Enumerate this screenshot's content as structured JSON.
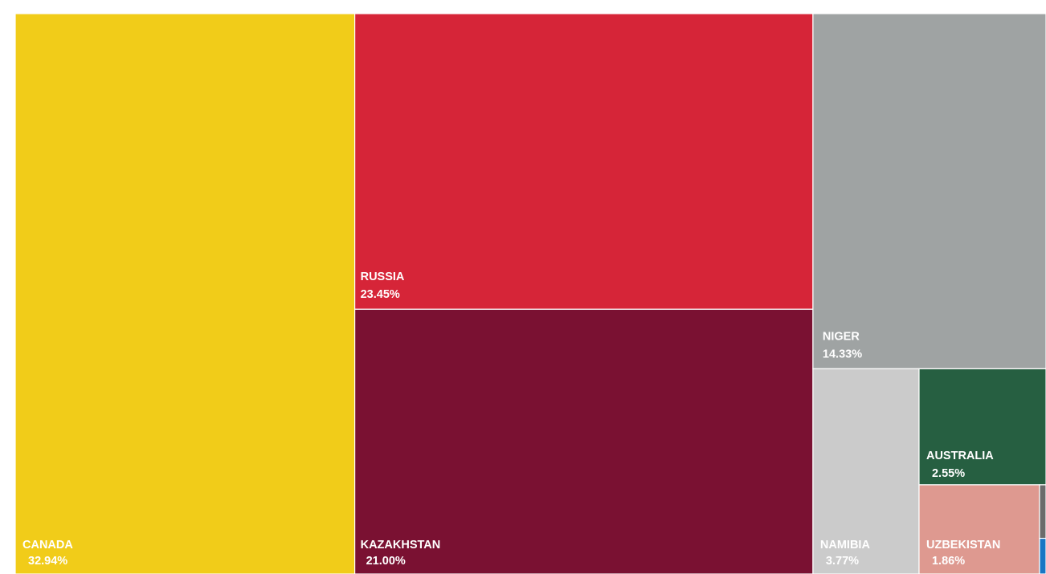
{
  "chart_data": {
    "type": "treemap",
    "title": "",
    "colors": {
      "CANADA": "#f1cc19",
      "RUSSIA": "#d62538",
      "KAZAKHSTAN": "#7a1132",
      "NIGER": "#9fa3a3",
      "NAMIBIA": "#cbcbcb",
      "AUSTRALIA": "#265f41",
      "UZBEKISTAN": "#de9990",
      "OTHER_1": "#6b6b6b",
      "OTHER_2": "#1976c4"
    },
    "items": [
      {
        "name": "CANADA",
        "label": "CANADA",
        "value": 32.94,
        "value_label": "32.94%"
      },
      {
        "name": "RUSSIA",
        "label": "RUSSIA",
        "value": 23.45,
        "value_label": "23.45%"
      },
      {
        "name": "KAZAKHSTAN",
        "label": "KAZAKHSTAN",
        "value": 21.0,
        "value_label": "21.00%"
      },
      {
        "name": "NIGER",
        "label": "NIGER",
        "value": 14.33,
        "value_label": "14.33%"
      },
      {
        "name": "NAMIBIA",
        "label": "NAMIBIA",
        "value": 3.77,
        "value_label": "3.77%"
      },
      {
        "name": "AUSTRALIA",
        "label": "AUSTRALIA",
        "value": 2.55,
        "value_label": "2.55%"
      },
      {
        "name": "UZBEKISTAN",
        "label": "UZBEKISTAN",
        "value": 1.86,
        "value_label": "1.86%"
      },
      {
        "name": "OTHER_1",
        "label": "",
        "value": 0.06,
        "value_label": ""
      },
      {
        "name": "OTHER_2",
        "label": "",
        "value": 0.04,
        "value_label": ""
      }
    ]
  }
}
